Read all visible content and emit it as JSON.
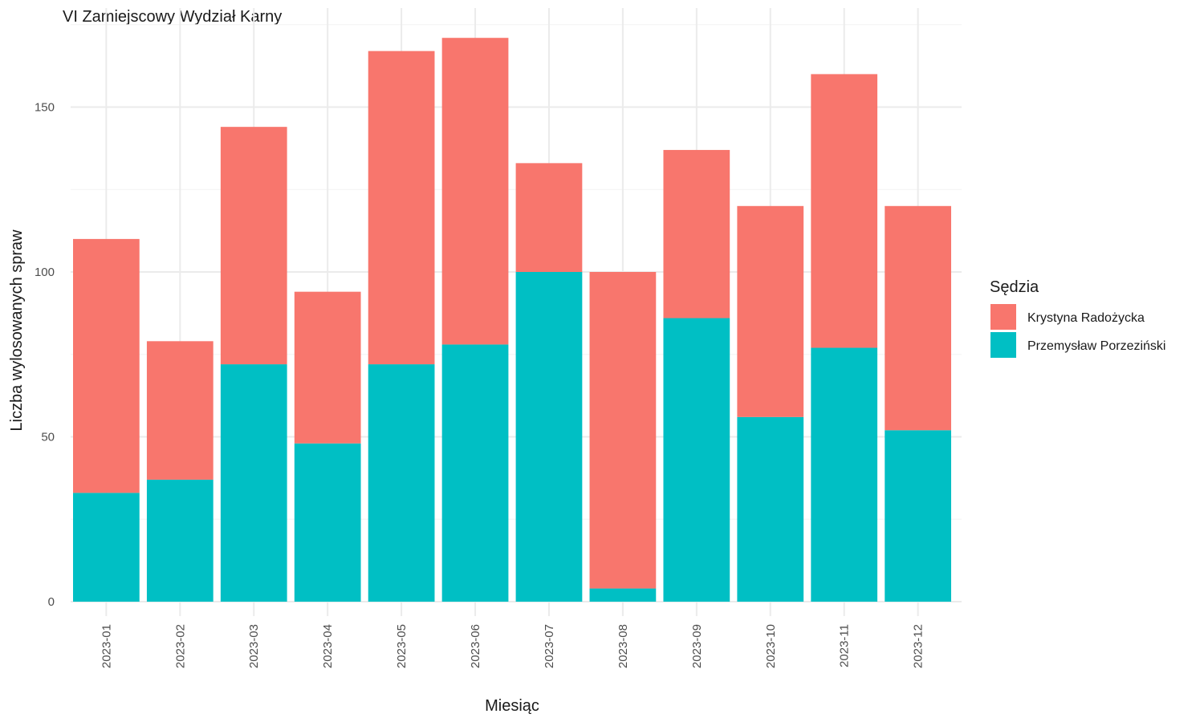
{
  "chart_data": {
    "type": "bar",
    "stacked": true,
    "title": "VI Zamiejscowy Wydział Karny",
    "xlabel": "Miesiąc",
    "ylabel": "Liczba wylosowanych spraw",
    "ylim": [
      0,
      175
    ],
    "yticks": [
      0,
      50,
      100,
      150
    ],
    "grid": true,
    "legend": {
      "title": "Sędzia",
      "position": "right"
    },
    "categories": [
      "2023-01",
      "2023-02",
      "2023-03",
      "2023-04",
      "2023-05",
      "2023-06",
      "2023-07",
      "2023-08",
      "2023-09",
      "2023-10",
      "2023-11",
      "2023-12"
    ],
    "series": [
      {
        "name": "Krystyna Radożycka",
        "color": "#F8766D",
        "values": [
          77,
          42,
          72,
          46,
          95,
          93,
          33,
          96,
          51,
          64,
          83,
          68
        ]
      },
      {
        "name": "Przemysław Porzeziński",
        "color": "#00BFC4",
        "values": [
          33,
          37,
          72,
          48,
          72,
          78,
          100,
          4,
          86,
          56,
          77,
          52
        ]
      }
    ]
  }
}
